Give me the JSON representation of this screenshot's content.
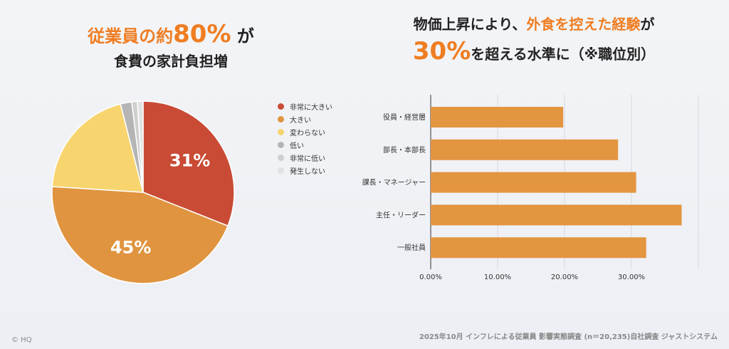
{
  "left_title": {
    "line1_a": "従業員の約",
    "line1_hl": "80%",
    "line1_b": "が",
    "line2": "食費の家計負担増"
  },
  "right_title": {
    "line1_a": "物価上昇により、",
    "line1_hl": "外食を控えた経験",
    "line1_b": "が",
    "line2_hl": "30%",
    "line2_b": "を超える水準に（※職位別）"
  },
  "footer": {
    "source": "2025年10月 インフレによる従業員 影響実態調査 (n＝20,235)自社調査 ジャストシステム",
    "copyright": "© HQ"
  },
  "chart_data": [
    {
      "type": "pie",
      "categories": [
        "非常に大きい",
        "大きい",
        "変わらない",
        "低い",
        "非常に低い",
        "発生しない"
      ],
      "values": [
        31,
        45,
        20,
        2,
        1,
        1
      ],
      "data_labels": [
        "31%",
        "45%",
        "",
        "",
        "",
        ""
      ],
      "colors": [
        "#c94b35",
        "#e0943f",
        "#f7d46e",
        "#b5b5b5",
        "#cfcfcf",
        "#e2e2e2"
      ],
      "legend": "right"
    },
    {
      "type": "bar",
      "orientation": "horizontal",
      "categories": [
        "役員・経営層",
        "部長・本部長",
        "課長・マネージャー",
        "主任・リーダー",
        "一般社員"
      ],
      "values": [
        19.8,
        28.0,
        30.7,
        37.5,
        32.2
      ],
      "xlim": [
        0,
        40
      ],
      "xticks": [
        "0.00%",
        "10.00%",
        "20.00%",
        "30.00%"
      ],
      "grid": true,
      "color": "#e39540"
    }
  ]
}
